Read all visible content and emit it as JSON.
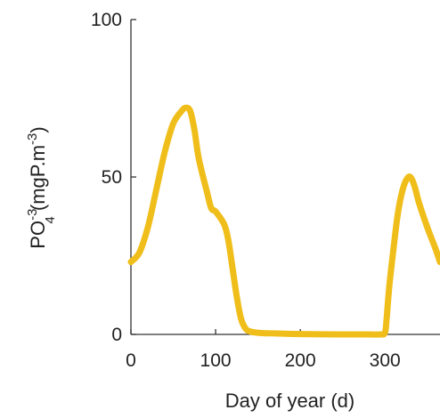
{
  "chart_data": {
    "type": "line",
    "title": "",
    "xlabel": "Day of year (d)",
    "ylabel": {
      "base": "PO",
      "superscript": "-3",
      "subscript": "4",
      "units_open": " (mgP.m",
      "units_sup": "-3",
      "units_close": ")"
    },
    "xlim": [
      0,
      365
    ],
    "ylim": [
      0,
      100
    ],
    "xticks": [
      0,
      100,
      200,
      300
    ],
    "yticks": [
      0,
      50,
      100
    ],
    "xtick_labels": [
      "0",
      "100",
      "200",
      "300"
    ],
    "ytick_labels": [
      "0",
      "50",
      "100"
    ],
    "grid": false,
    "legend": "none",
    "series": [
      {
        "color": "#f0be1a",
        "x": [
          0,
          10,
          20,
          30,
          40,
          50,
          60,
          65,
          70,
          75,
          80,
          90,
          95,
          100,
          110,
          115,
          120,
          125,
          130,
          135,
          140,
          150,
          170,
          200,
          250,
          280,
          295,
          300,
          302,
          305,
          310,
          315,
          320,
          325,
          330,
          335,
          340,
          350,
          360,
          365
        ],
        "y": [
          23,
          26,
          34,
          46,
          58,
          67,
          71,
          72,
          71,
          65,
          56,
          45,
          40,
          39,
          35,
          30,
          21,
          12,
          5,
          2,
          1,
          0.5,
          0.3,
          0.1,
          0,
          0,
          0,
          0.5,
          5,
          15,
          27,
          38,
          45,
          49,
          50,
          47,
          42,
          34,
          27,
          23
        ]
      }
    ]
  }
}
